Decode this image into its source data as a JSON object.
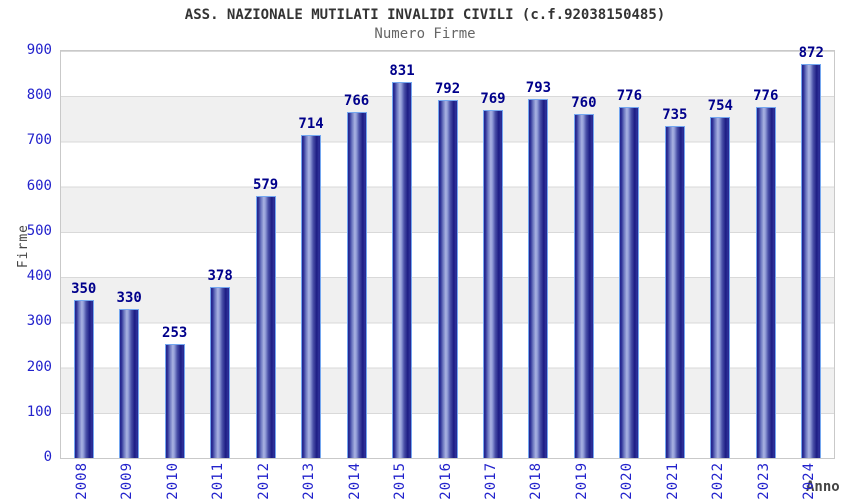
{
  "header": {
    "title": "ASS. NAZIONALE MUTILATI INVALIDI CIVILI (c.f.92038150485)",
    "subtitle": "Numero Firme"
  },
  "chart_data": {
    "type": "bar",
    "title": "ASS. NAZIONALE MUTILATI INVALIDI CIVILI (c.f.92038150485)",
    "subtitle": "Numero Firme",
    "xlabel": "Anno",
    "ylabel": "Firme",
    "categories": [
      "2008",
      "2009",
      "2010",
      "2011",
      "2012",
      "2013",
      "2014",
      "2015",
      "2016",
      "2017",
      "2018",
      "2019",
      "2020",
      "2021",
      "2022",
      "2023",
      "2024"
    ],
    "values": [
      350,
      330,
      253,
      378,
      579,
      714,
      766,
      831,
      792,
      769,
      793,
      760,
      776,
      735,
      754,
      776,
      872
    ],
    "ylim": [
      0,
      900
    ],
    "ytick_step": 100,
    "grid": "horizontal-bands-alternating",
    "legend": "none",
    "colors": {
      "bar_fill_dark": "#23238e",
      "bar_fill_highlight": "#aab3e2",
      "bar_border": "#74a7f0",
      "axis_tick_label": "#2222cc",
      "value_label": "#00008b",
      "title": "#333333",
      "subtitle": "#666666",
      "band_gray": "#f0f0f0",
      "band_white": "#ffffff",
      "plot_border": "#c9c9c9"
    }
  }
}
